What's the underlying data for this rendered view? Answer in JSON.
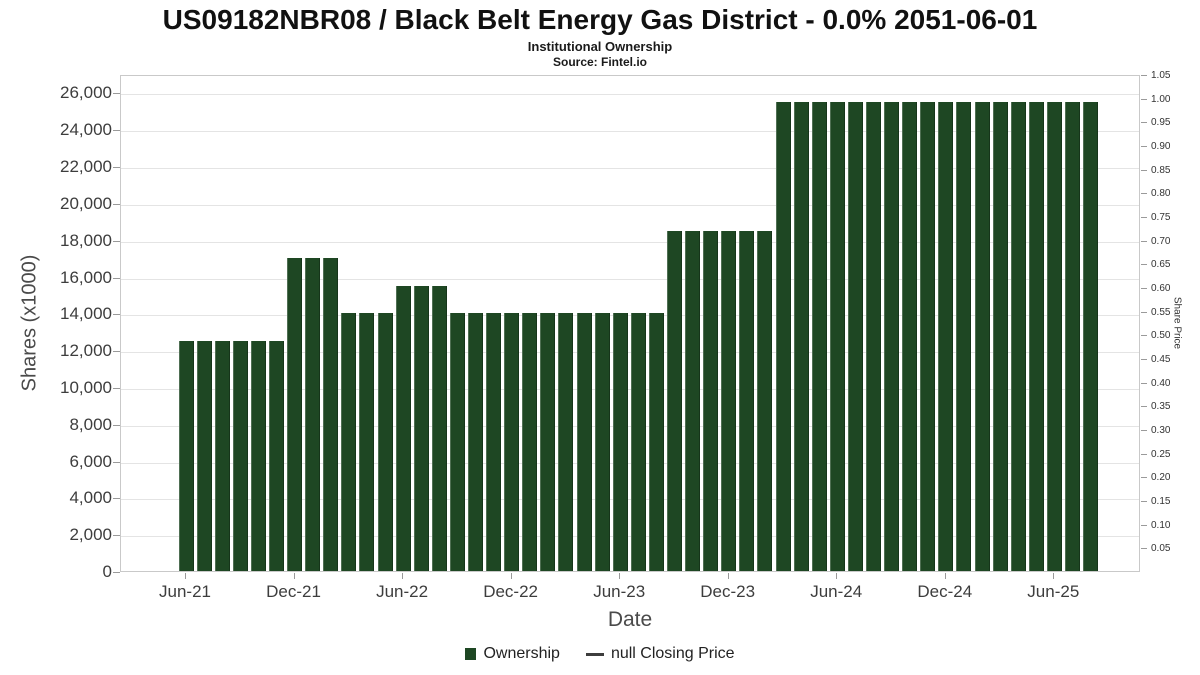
{
  "title": "US09182NBR08 / Black Belt Energy Gas District - 0.0% 2051-06-01",
  "subtitle": "Institutional Ownership",
  "source": "Source: Fintel.io",
  "axes": {
    "left_label": "Shares (x1000)",
    "right_label": "Share Price",
    "x_label": "Date"
  },
  "legend": {
    "ownership": {
      "label": "Ownership",
      "color": "#1e4723"
    },
    "closing_price": {
      "label": "null Closing Price",
      "color": "#3d3d3d"
    }
  },
  "chart_data": {
    "type": "bar",
    "title": "US09182NBR08 / Black Belt Energy Gas District - 0.0% 2051-06-01",
    "subtitle": "Institutional Ownership",
    "xlabel": "Date",
    "ylabel_left": "Shares (x1000)",
    "ylabel_right": "Share Price",
    "grid": true,
    "legend_position": "bottom",
    "bar_color": "#1e4723",
    "x": [
      "Jun-21",
      "Jul-21",
      "Aug-21",
      "Sep-21",
      "Oct-21",
      "Nov-21",
      "Dec-21",
      "Jan-22",
      "Feb-22",
      "Mar-22",
      "Apr-22",
      "May-22",
      "Jun-22",
      "Jul-22",
      "Aug-22",
      "Sep-22",
      "Oct-22",
      "Nov-22",
      "Dec-22",
      "Jan-23",
      "Feb-23",
      "Mar-23",
      "Apr-23",
      "May-23",
      "Jun-23",
      "Jul-23",
      "Aug-23",
      "Sep-23",
      "Oct-23",
      "Nov-23",
      "Dec-23",
      "Jan-24",
      "Feb-24",
      "Mar-24",
      "Apr-24",
      "May-24",
      "Jun-24",
      "Jul-24",
      "Aug-24",
      "Sep-24",
      "Oct-24",
      "Nov-24",
      "Dec-24",
      "Jan-25",
      "Feb-25",
      "Mar-25",
      "Apr-25",
      "May-25",
      "Jun-25",
      "Jul-25",
      "Aug-25"
    ],
    "series": [
      {
        "name": "Ownership",
        "values": [
          12500,
          12500,
          12500,
          12500,
          12500,
          12500,
          17000,
          17000,
          17000,
          14000,
          14000,
          14000,
          15500,
          15500,
          15500,
          14000,
          14000,
          14000,
          14000,
          14000,
          14000,
          14000,
          14000,
          14000,
          14000,
          14000,
          14000,
          18500,
          18500,
          18500,
          18500,
          18500,
          18500,
          25500,
          25500,
          25500,
          25500,
          25500,
          25500,
          25500,
          25500,
          25500,
          25500,
          25500,
          25500,
          25500,
          25500,
          25500,
          25500,
          25500,
          25500
        ]
      }
    ],
    "x_ticks": [
      "Jun-21",
      "Dec-21",
      "Jun-22",
      "Dec-22",
      "Jun-23",
      "Dec-23",
      "Jun-24",
      "Dec-24",
      "Jun-25"
    ],
    "left_axis": {
      "ticks": [
        0,
        2000,
        4000,
        6000,
        8000,
        10000,
        12000,
        14000,
        16000,
        18000,
        20000,
        22000,
        24000,
        26000
      ],
      "max": 27000
    },
    "right_axis": {
      "ticks": [
        "0.05",
        "0.10",
        "0.15",
        "0.20",
        "0.25",
        "0.30",
        "0.35",
        "0.40",
        "0.45",
        "0.50",
        "0.55",
        "0.60",
        "0.65",
        "0.70",
        "0.75",
        "0.80",
        "0.85",
        "0.90",
        "0.95",
        "1.00",
        "1.05"
      ],
      "max": 1.05
    }
  }
}
